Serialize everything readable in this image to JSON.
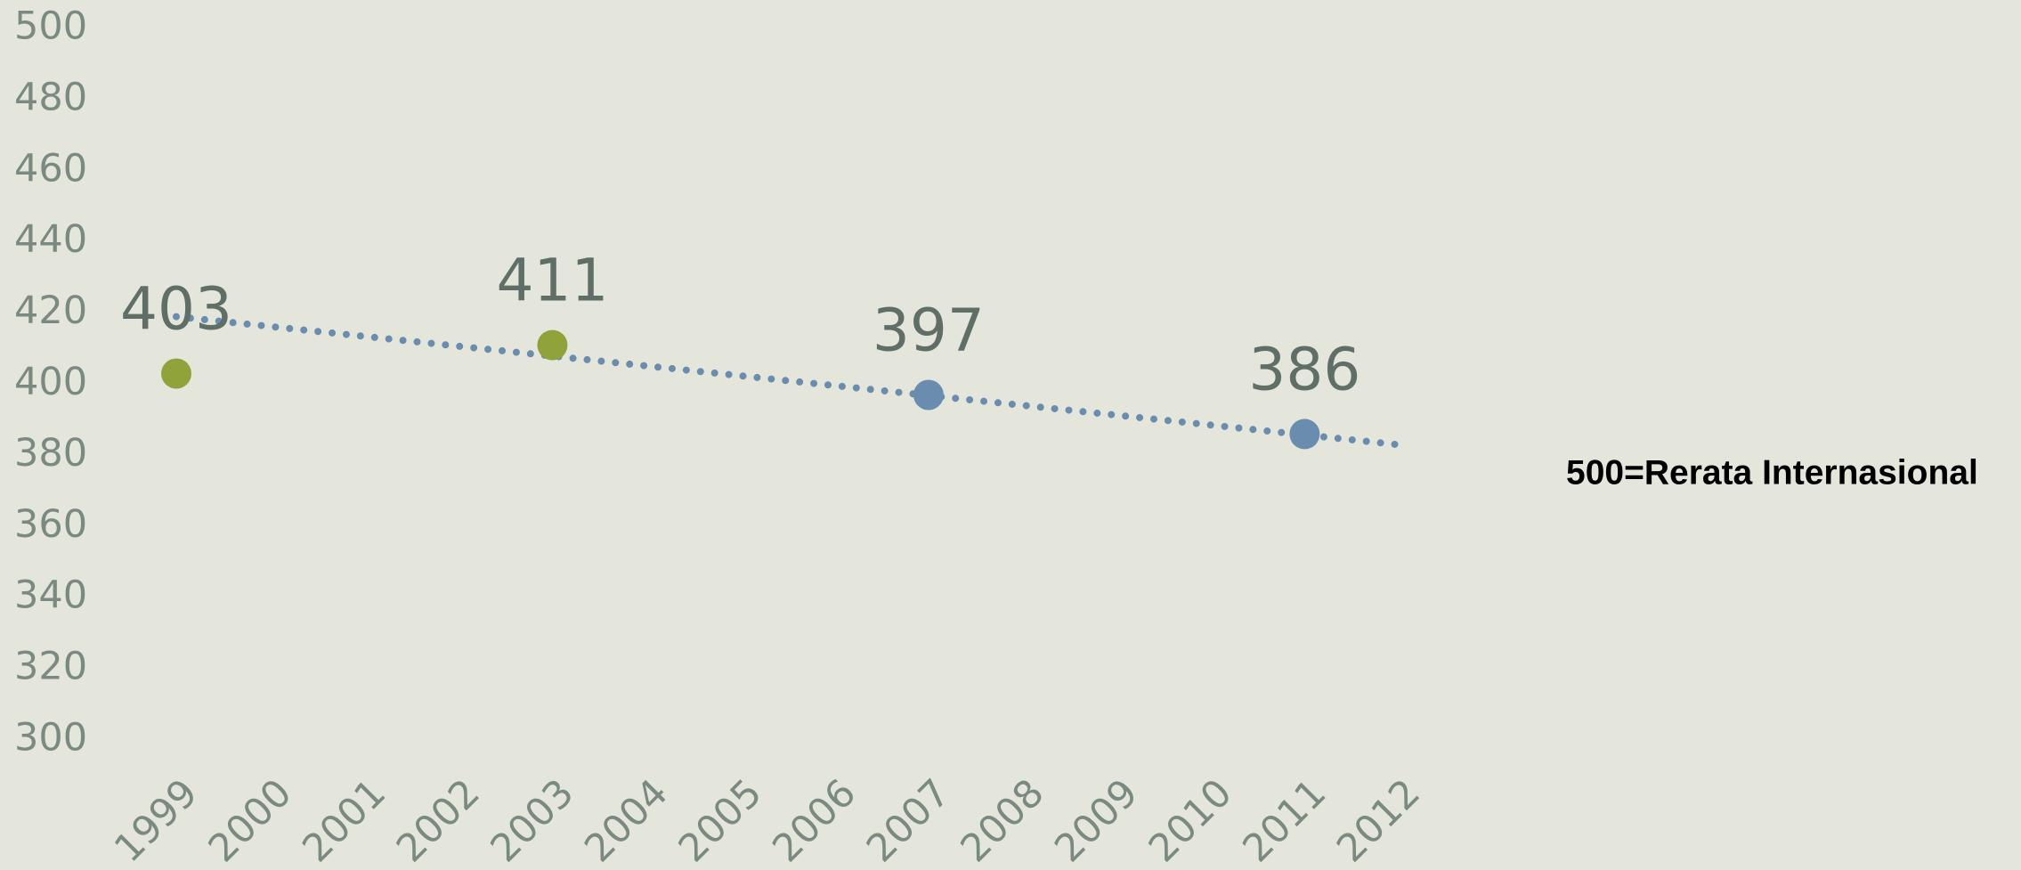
{
  "chart_data": {
    "type": "scatter",
    "x": [
      1999,
      2003,
      2007,
      2011
    ],
    "values": [
      403,
      411,
      397,
      386
    ],
    "point_colors": [
      "#8fa33a",
      "#8fa33a",
      "#6a8caf",
      "#6a8caf"
    ],
    "trendline": {
      "x": [
        1999,
        2012
      ],
      "values": [
        419,
        383
      ],
      "color": "#6a8caf",
      "style": "dotted"
    },
    "xlim": [
      1999,
      2012
    ],
    "xticks": [
      1999,
      2000,
      2001,
      2002,
      2003,
      2004,
      2005,
      2006,
      2007,
      2008,
      2009,
      2010,
      2011,
      2012
    ],
    "ylim": [
      300,
      500
    ],
    "yticks": [
      300,
      320,
      340,
      360,
      380,
      400,
      420,
      440,
      460,
      480,
      500
    ],
    "grid": false,
    "annotation": "500=Rerata Internasional"
  }
}
